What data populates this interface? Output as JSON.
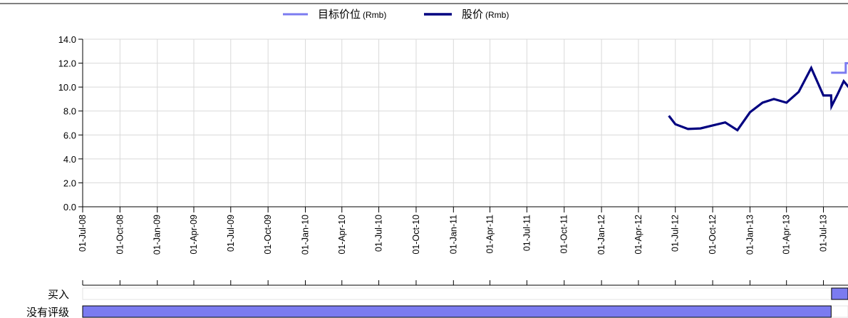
{
  "chart_data": {
    "type": "line",
    "title": "",
    "xlabel": "",
    "ylabel": "",
    "legend_position": "top-center",
    "grid": true,
    "ylim": [
      0,
      14
    ],
    "yticks": [
      0,
      2,
      4,
      6,
      8,
      10,
      12,
      14
    ],
    "ytick_labels": [
      "0.0",
      "2.0",
      "4.0",
      "6.0",
      "8.0",
      "10.0",
      "12.0",
      "14.0"
    ],
    "xlim": [
      "2008-07-01",
      "2013-10-01"
    ],
    "xticks": [
      "2008-07-01",
      "2008-10-01",
      "2009-01-01",
      "2009-04-01",
      "2009-07-01",
      "2009-10-01",
      "2010-01-01",
      "2010-04-01",
      "2010-07-01",
      "2010-10-01",
      "2011-01-01",
      "2011-04-01",
      "2011-07-01",
      "2011-10-01",
      "2012-01-01",
      "2012-04-01",
      "2012-07-01",
      "2012-10-01",
      "2013-01-01",
      "2013-04-01",
      "2013-07-01"
    ],
    "xtick_labels": [
      "01-Jul-08",
      "01-Oct-08",
      "01-Jan-09",
      "01-Apr-09",
      "01-Jul-09",
      "01-Oct-09",
      "01-Jan-10",
      "01-Apr-10",
      "01-Jul-10",
      "01-Oct-10",
      "01-Jan-11",
      "01-Apr-11",
      "01-Jul-11",
      "01-Oct-11",
      "01-Jan-12",
      "01-Apr-12",
      "01-Jul-12",
      "01-Oct-12",
      "01-Jan-13",
      "01-Apr-13",
      "01-Jul-13"
    ],
    "series": [
      {
        "name": "目标价位",
        "unit": "(Rmb)",
        "color": "#7b7bf0",
        "x": [
          "2013-07-20",
          "2013-08-25",
          "2013-08-25",
          "2013-09-30"
        ],
        "values": [
          11.2,
          11.2,
          12.0,
          12.0
        ]
      },
      {
        "name": "股价",
        "unit": "(Rmb)",
        "color": "#000080",
        "x": [
          "2012-06-15",
          "2012-07-01",
          "2012-08-01",
          "2012-09-01",
          "2012-10-01",
          "2012-11-01",
          "2012-12-01",
          "2013-01-01",
          "2013-02-01",
          "2013-03-01",
          "2013-04-01",
          "2013-05-01",
          "2013-06-01",
          "2013-07-01",
          "2013-07-20",
          "2013-07-21",
          "2013-08-05",
          "2013-08-20",
          "2013-09-01",
          "2013-09-30"
        ],
        "values": [
          7.6,
          6.9,
          6.5,
          6.55,
          6.8,
          7.05,
          6.4,
          7.9,
          8.7,
          9.0,
          8.7,
          9.6,
          11.6,
          9.3,
          9.3,
          8.4,
          9.4,
          10.5,
          10.0,
          10.1
        ]
      }
    ],
    "ratings": {
      "labels": [
        "买入",
        "没有评级"
      ],
      "color": "#7b7bf0",
      "periods": [
        {
          "rating": "没有评级",
          "start": "2008-07-01",
          "end": "2013-07-20"
        },
        {
          "rating": "买入",
          "start": "2013-07-21",
          "end": "2013-10-01"
        }
      ]
    }
  }
}
